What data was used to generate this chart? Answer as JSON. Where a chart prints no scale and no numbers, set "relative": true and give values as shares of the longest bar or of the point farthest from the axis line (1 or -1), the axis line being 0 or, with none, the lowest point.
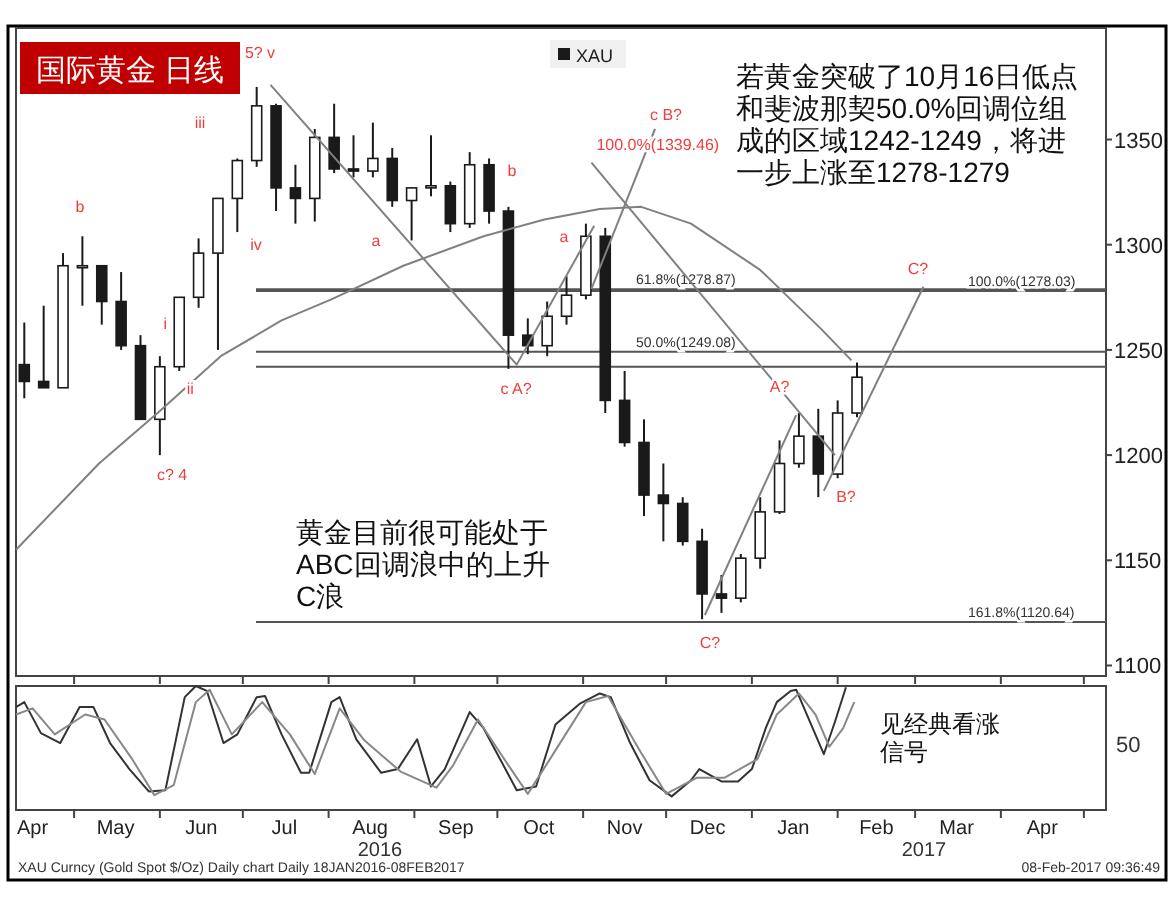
{
  "chart_data": [
    {
      "type": "candlestick",
      "title": "国际黄金 日线",
      "legend": "top",
      "tick_labels": "y",
      "xlim": [
        "2016-04-10",
        "2017-05-09"
      ],
      "xticks": [
        {
          "value": "2016-05-01",
          "label": null
        },
        {
          "value": "2016-06-01",
          "label": null
        },
        {
          "value": "2016-07-01",
          "label": null
        },
        {
          "value": "2016-08-01",
          "label": null
        },
        {
          "value": "2016-09-01",
          "label": null
        },
        {
          "value": "2016-10-01",
          "label": null
        },
        {
          "value": "2016-11-01",
          "label": null
        },
        {
          "value": "2016-12-01",
          "label": null
        },
        {
          "value": "2017-01-01",
          "label": null
        },
        {
          "value": "2017-02-01",
          "label": null
        },
        {
          "value": "2017-03-01",
          "label": null
        },
        {
          "value": "2017-04-01",
          "label": null
        },
        {
          "value": "2017-05-01",
          "label": null
        }
      ],
      "ylim": [
        1095,
        1403
      ],
      "yticks": [
        1100,
        1150,
        1200,
        1250,
        1300,
        1350
      ],
      "series": [
        {
          "name": "XAU",
          "type": "candlestick",
          "color": "#1a1a1a",
          "x": [
            "2016-04-13",
            "2016-04-20",
            "2016-04-27",
            "2016-05-04",
            "2016-05-11",
            "2016-05-18",
            "2016-05-25",
            "2016-06-01",
            "2016-06-08",
            "2016-06-15",
            "2016-06-22",
            "2016-06-29",
            "2016-07-06",
            "2016-07-13",
            "2016-07-20",
            "2016-07-27",
            "2016-08-03",
            "2016-08-10",
            "2016-08-17",
            "2016-08-24",
            "2016-08-31",
            "2016-09-07",
            "2016-09-14",
            "2016-09-21",
            "2016-09-28",
            "2016-10-05",
            "2016-10-12",
            "2016-10-19",
            "2016-10-26",
            "2016-11-02",
            "2016-11-09",
            "2016-11-16",
            "2016-11-23",
            "2016-11-30",
            "2016-12-07",
            "2016-12-14",
            "2016-12-21",
            "2016-12-28",
            "2017-01-04",
            "2017-01-11",
            "2017-01-18",
            "2017-01-25",
            "2017-02-01",
            "2017-02-08"
          ],
          "ohlc": [
            [
              1243,
              1263,
              1227,
              1235
            ],
            [
              1235,
              1271,
              1232,
              1232
            ],
            [
              1232,
              1296,
              1232,
              1290
            ],
            [
              1290,
              1304,
              1271,
              1290
            ],
            [
              1290,
              1290,
              1262,
              1273
            ],
            [
              1273,
              1287,
              1250,
              1252
            ],
            [
              1252,
              1257,
              1217,
              1217
            ],
            [
              1217,
              1247,
              1200,
              1242
            ],
            [
              1242,
              1275,
              1240,
              1275
            ],
            [
              1275,
              1303,
              1270,
              1296
            ],
            [
              1296,
              1322,
              1250,
              1322
            ],
            [
              1322,
              1341,
              1306,
              1340
            ],
            [
              1340,
              1375,
              1337,
              1366
            ],
            [
              1366,
              1367,
              1316,
              1327
            ],
            [
              1327,
              1338,
              1310,
              1322
            ],
            [
              1322,
              1355,
              1311,
              1351
            ],
            [
              1351,
              1367,
              1334,
              1336
            ],
            [
              1336,
              1352,
              1332,
              1335
            ],
            [
              1335,
              1358,
              1332,
              1341
            ],
            [
              1341,
              1346,
              1318,
              1321
            ],
            [
              1321,
              1327,
              1302,
              1327
            ],
            [
              1327,
              1352,
              1323,
              1328
            ],
            [
              1328,
              1330,
              1306,
              1310
            ],
            [
              1310,
              1344,
              1308,
              1338
            ],
            [
              1338,
              1341,
              1310,
              1316
            ],
            [
              1316,
              1318,
              1241,
              1257
            ],
            [
              1257,
              1265,
              1248,
              1252
            ],
            [
              1252,
              1273,
              1247,
              1266
            ],
            [
              1266,
              1285,
              1262,
              1276
            ],
            [
              1276,
              1310,
              1274,
              1304
            ],
            [
              1304,
              1308,
              1220,
              1226
            ],
            [
              1226,
              1240,
              1204,
              1206
            ],
            [
              1206,
              1217,
              1171,
              1181
            ],
            [
              1181,
              1196,
              1159,
              1177
            ],
            [
              1177,
              1180,
              1157,
              1159
            ],
            [
              1159,
              1165,
              1122,
              1134
            ],
            [
              1134,
              1143,
              1125,
              1132
            ],
            [
              1132,
              1153,
              1130,
              1151
            ],
            [
              1151,
              1180,
              1146,
              1173
            ],
            [
              1173,
              1207,
              1172,
              1196
            ],
            [
              1196,
              1220,
              1194,
              1209
            ],
            [
              1209,
              1222,
              1180,
              1191
            ],
            [
              1191,
              1226,
              1189,
              1220
            ],
            [
              1220,
              1244,
              1218,
              1237
            ]
          ]
        },
        {
          "type": "line",
          "color": "#808080",
          "x": [
            "2016-04-10",
            "2016-05-10",
            "2016-06-01",
            "2016-06-23",
            "2016-07-15",
            "2016-08-02",
            "2016-08-28",
            "2016-09-26",
            "2016-10-18",
            "2016-11-07",
            "2016-11-22",
            "2016-12-10",
            "2017-01-04",
            "2017-01-26",
            "2017-02-06"
          ],
          "values": [
            1155,
            1196,
            1221,
            1247,
            1264,
            1274,
            1290,
            1304,
            1312,
            1317,
            1318,
            1310,
            1288,
            1260,
            1245
          ]
        },
        {
          "type": "line",
          "color": "#808080",
          "x": [
            "2016-07-11",
            "2016-10-08",
            "2016-11-05"
          ],
          "values": [
            1376,
            1243,
            1309
          ]
        },
        {
          "type": "line",
          "color": "#808080",
          "x": [
            "2016-11-04",
            "2016-11-27"
          ],
          "values": [
            1279,
            1355
          ]
        },
        {
          "type": "line",
          "color": "#808080",
          "x": [
            "2016-11-04",
            "2017-01-31"
          ],
          "values": [
            1339,
            1200
          ]
        },
        {
          "type": "line",
          "color": "#808080",
          "x": [
            "2016-12-15",
            "2017-01-17"
          ],
          "values": [
            1124,
            1219
          ]
        },
        {
          "type": "line",
          "color": "#808080",
          "x": [
            "2017-01-27",
            "2017-03-04"
          ],
          "values": [
            1183,
            1280
          ]
        }
      ],
      "ref_lines": [
        {
          "axis": "y",
          "value": 1278.87,
          "label": "61.8%(1278.87)"
        },
        {
          "axis": "y",
          "value": 1249.08,
          "label": "50.0%(1249.08)"
        },
        {
          "axis": "y",
          "value": 1278.03,
          "label": "100.0%(1278.03)"
        },
        {
          "axis": "y",
          "value": 1120.64,
          "label": "161.8%(1120.64)"
        },
        {
          "axis": "y",
          "value": 1242
        }
      ],
      "annotations": [
        "若黄金突破了10月16日低点和斐波那契50.0%回调位组成的区域1242-1249，将进一步上涨至1278-1279",
        "黄金目前很可能处于ABC回调浪中的上升C浪",
        {
          "text": "100.0%(1339.46)",
          "x": "2016-11-28",
          "y": 1345
        },
        "b",
        "iii",
        "5? v",
        "iv",
        {
          "text": "i",
          "x": "2016-06-03",
          "y": 1260
        },
        {
          "text": "ii",
          "x": "2016-06-12",
          "y": 1229
        },
        "c? 4",
        "a",
        "b",
        "c A?",
        "a",
        "c B?",
        {
          "text": "A?",
          "x": "2017-01-11",
          "y": 1230
        },
        "B?",
        "C?",
        "C?"
      ]
    },
    {
      "type": "line",
      "relative": true,
      "tick_labels": "x",
      "xlim": [
        "2016-04-10",
        "2017-05-09"
      ],
      "xticks": [
        {
          "value": "2016-04-16",
          "label": "Apr"
        },
        {
          "value": "2016-05-01",
          "label": null
        },
        {
          "value": "2016-05-16",
          "label": "May"
        },
        {
          "value": "2016-06-01",
          "label": null
        },
        {
          "value": "2016-06-16",
          "label": "Jun"
        },
        {
          "value": "2016-07-01",
          "label": null
        },
        {
          "value": "2016-07-16",
          "label": "Jul"
        },
        {
          "value": "2016-08-01",
          "label": null
        },
        {
          "value": "2016-08-16",
          "label": "Aug"
        },
        {
          "value": "2016-09-01",
          "label": null
        },
        {
          "value": "2016-09-16",
          "label": "Sep"
        },
        {
          "value": "2016-10-01",
          "label": null
        },
        {
          "value": "2016-10-16",
          "label": "Oct"
        },
        {
          "value": "2016-11-01",
          "label": null
        },
        {
          "value": "2016-11-16",
          "label": "Nov"
        },
        {
          "value": "2016-12-01",
          "label": null
        },
        {
          "value": "2016-12-16",
          "label": "Dec"
        },
        {
          "value": "2017-01-01",
          "label": null
        },
        {
          "value": "2017-01-16",
          "label": "Jan"
        },
        {
          "value": "2017-02-01",
          "label": null
        },
        {
          "value": "2017-02-15",
          "label": "Feb"
        },
        {
          "value": "2017-03-01",
          "label": null
        },
        {
          "value": "2017-03-16",
          "label": "Mar"
        },
        {
          "value": "2017-04-01",
          "label": null
        },
        {
          "value": "2017-04-16",
          "label": "Apr"
        },
        {
          "value": "2017-05-01",
          "label": null
        }
      ],
      "series": [
        {
          "color": "#333333",
          "x": [
            "2016-04-10",
            "2016-04-13",
            "2016-04-19",
            "2016-04-26",
            "2016-05-03",
            "2016-05-08",
            "2016-05-14",
            "2016-05-21",
            "2016-05-28",
            "2016-06-03",
            "2016-06-10",
            "2016-06-14",
            "2016-06-18",
            "2016-06-24",
            "2016-06-29",
            "2016-07-06",
            "2016-07-09",
            "2016-07-15",
            "2016-07-22",
            "2016-07-25",
            "2016-08-02",
            "2016-08-05",
            "2016-08-11",
            "2016-08-20",
            "2016-08-26",
            "2016-09-02",
            "2016-09-07",
            "2016-09-12",
            "2016-09-21",
            "2016-09-26",
            "2016-10-02",
            "2016-10-08",
            "2016-10-15",
            "2016-10-22",
            "2016-10-31",
            "2016-11-07",
            "2016-11-11",
            "2016-11-18",
            "2016-11-25",
            "2016-12-03",
            "2016-12-10",
            "2016-12-13",
            "2016-12-21",
            "2016-12-27",
            "2017-01-01",
            "2017-01-06",
            "2017-01-10",
            "2017-01-15",
            "2017-01-17",
            "2017-01-22",
            "2017-01-27",
            "2017-01-31",
            "2017-02-04"
          ],
          "values": [
            0.83,
            0.87,
            0.62,
            0.54,
            0.83,
            0.83,
            0.54,
            0.33,
            0.15,
            0.16,
            0.91,
            1,
            0.96,
            0.54,
            0.61,
            0.91,
            0.92,
            0.61,
            0.3,
            0.3,
            0.87,
            0.91,
            0.57,
            0.3,
            0.33,
            0.57,
            0.19,
            0.33,
            0.79,
            0.66,
            0.41,
            0.16,
            0.19,
            0.69,
            0.86,
            0.94,
            0.91,
            0.54,
            0.24,
            0.11,
            0.24,
            0.33,
            0.23,
            0.23,
            0.33,
            0.66,
            0.87,
            0.96,
            0.97,
            0.71,
            0.45,
            0.71,
            0.99
          ]
        },
        {
          "color": "#888888",
          "x": [
            "2016-04-10",
            "2016-04-16",
            "2016-04-24",
            "2016-05-05",
            "2016-05-12",
            "2016-05-22",
            "2016-05-30",
            "2016-06-06",
            "2016-06-14",
            "2016-06-19",
            "2016-06-27",
            "2016-07-08",
            "2016-07-18",
            "2016-07-27",
            "2016-08-05",
            "2016-08-14",
            "2016-08-27",
            "2016-09-09",
            "2016-09-15",
            "2016-09-24",
            "2016-10-05",
            "2016-10-12",
            "2016-10-20",
            "2016-11-02",
            "2016-11-10",
            "2016-11-22",
            "2016-12-01",
            "2016-12-12",
            "2016-12-22",
            "2017-01-03",
            "2017-01-10",
            "2017-01-18",
            "2017-01-24",
            "2017-01-29",
            "2017-02-03",
            "2017-02-07"
          ],
          "values": [
            0.77,
            0.82,
            0.61,
            0.77,
            0.73,
            0.41,
            0.12,
            0.2,
            0.87,
            0.97,
            0.61,
            0.87,
            0.61,
            0.29,
            0.82,
            0.56,
            0.31,
            0.18,
            0.36,
            0.73,
            0.36,
            0.13,
            0.41,
            0.87,
            0.92,
            0.46,
            0.13,
            0.26,
            0.26,
            0.41,
            0.77,
            0.94,
            0.77,
            0.51,
            0.66,
            0.87
          ]
        }
      ],
      "annotations": [
        "50",
        "2016",
        "2017",
        "见经典看涨信号",
        "XAU Curncy (Gold Spot $/Oz) Daily chart Daily 18JAN2016-08FEB2017",
        "08-Feb-2017 09:36:49"
      ]
    }
  ]
}
